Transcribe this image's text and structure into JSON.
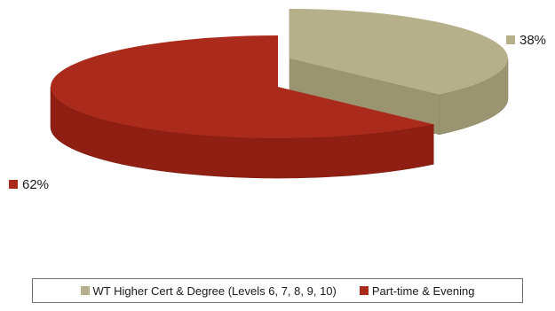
{
  "chart_data": {
    "type": "pie",
    "style": "3d-exploded",
    "series": [
      {
        "name": "WT Higher Cert & Degree (Levels 6, 7, 8, 9, 10)",
        "value": 38,
        "label": "38%",
        "color": "#b5b08a",
        "side_color": "#9a9470"
      },
      {
        "name": "Part-time & Evening",
        "value": 62,
        "label": "62%",
        "color": "#aa2a1c",
        "side_color": "#8f1f12"
      }
    ],
    "legend_position": "bottom"
  }
}
